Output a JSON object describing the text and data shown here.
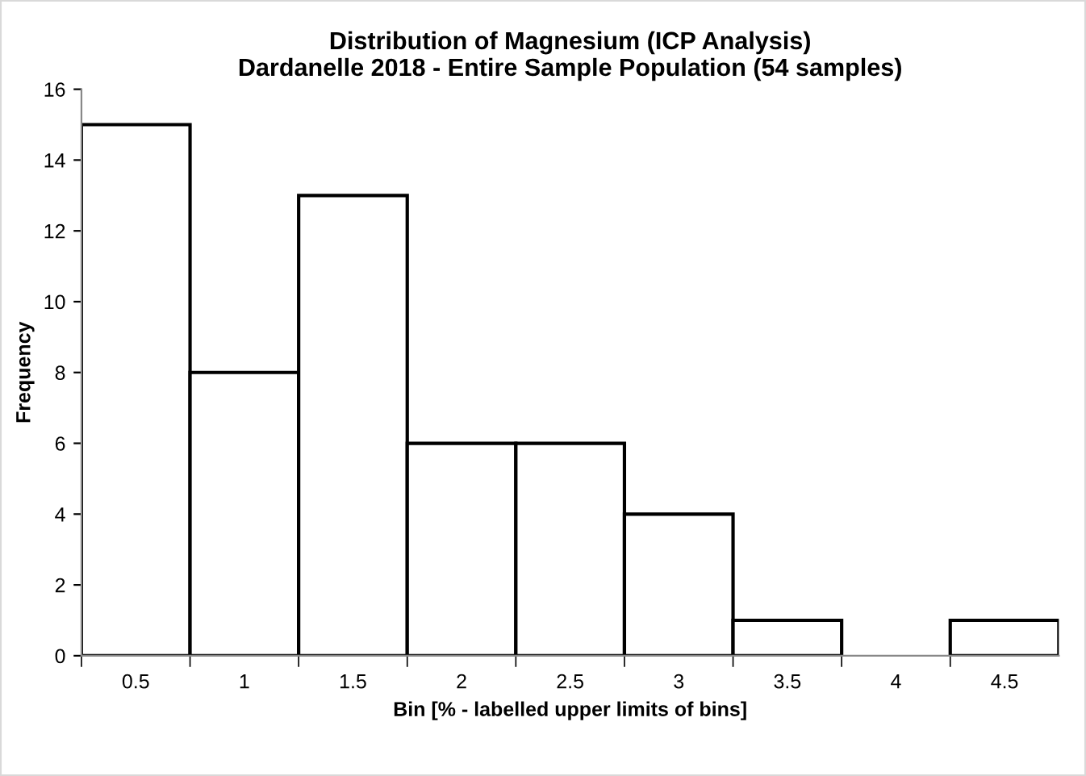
{
  "chart_data": {
    "type": "bar",
    "title": "Distribution of Magnesium (ICP Analysis)\nDardanelle 2018 - Entire Sample Population (54 samples)",
    "xlabel": "Bin [% - labelled upper limits of bins]",
    "ylabel": "Frequency",
    "categories": [
      "0.5",
      "1",
      "1.5",
      "2",
      "2.5",
      "3",
      "3.5",
      "4",
      "4.5"
    ],
    "series": [
      {
        "color": "#ffffff",
        "values": [
          15,
          8,
          13,
          6,
          6,
          4,
          1,
          0,
          1
        ]
      }
    ],
    "ylim": [
      0,
      16
    ],
    "yticks": [
      0,
      2,
      4,
      6,
      8,
      10,
      12,
      14,
      16
    ],
    "grid": false,
    "legend": false
  }
}
